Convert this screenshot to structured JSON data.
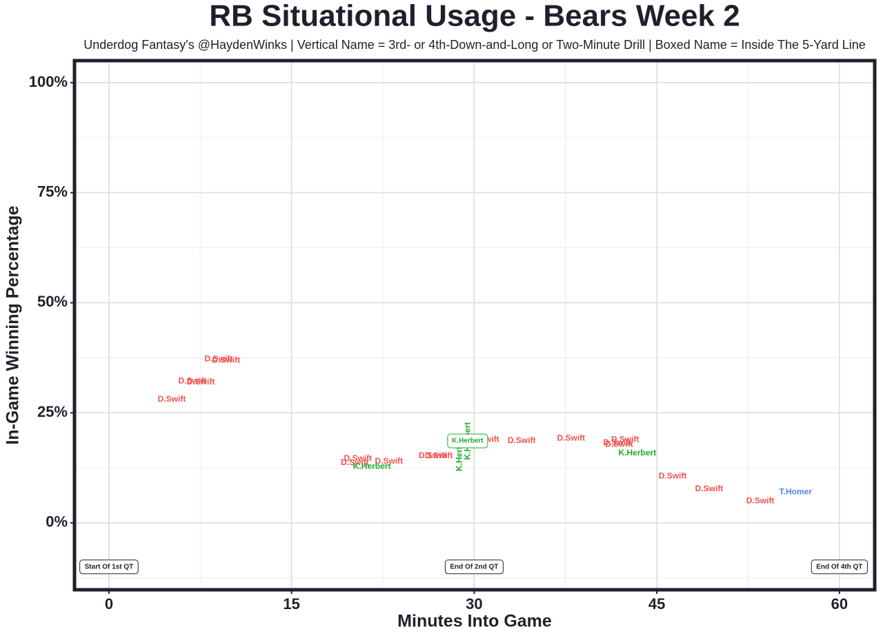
{
  "chart_data": {
    "type": "scatter",
    "title": "RB Situational Usage - Bears Week 2",
    "subtitle": "Underdog Fantasy's @HaydenWinks | Vertical Name = 3rd- or 4th-Down-and-Long or Two-Minute Drill | Boxed Name = Inside The 5-Yard Line",
    "x_label": "Minutes Into Game",
    "y_label": "In-Game Winning Percentage",
    "xlim": [
      -2.83,
      62.9
    ],
    "ylim": [
      -15.2,
      105
    ],
    "xticks": [
      0,
      15,
      30,
      45,
      60
    ],
    "xminor": [
      7.5,
      22.5,
      37.5,
      52.5
    ],
    "yticks": [
      {
        "value": 0,
        "label": "0%"
      },
      {
        "value": 25,
        "label": "25%"
      },
      {
        "value": 50,
        "label": "50%"
      },
      {
        "value": 75,
        "label": "75%"
      },
      {
        "value": 100,
        "label": "100%"
      }
    ],
    "yminor": [
      -12.5,
      12.5,
      37.5,
      62.5,
      87.5
    ],
    "grid": true,
    "series": [
      {
        "name": "D.Swift",
        "color": "#ef5350",
        "x": [
          5.16,
          6.86,
          7.54,
          9.0,
          9.63,
          20.45,
          20.2,
          23.0,
          26.6,
          27.1,
          30.9,
          33.9,
          37.96,
          41.75,
          42.4,
          41.9,
          46.3,
          49.3,
          53.5
        ],
        "values": [
          28.0,
          32.2,
          31.9,
          37.2,
          36.9,
          14.6,
          13.6,
          13.9,
          15.2,
          15.2,
          18.9,
          18.6,
          19.2,
          18.2,
          18.9,
          17.8,
          10.6,
          7.7,
          4.9
        ],
        "styles": [
          "normal",
          "normal",
          "normal",
          "normal",
          "normal",
          "normal",
          "normal",
          "normal",
          "normal",
          "normal",
          "normal",
          "normal",
          "normal",
          "normal",
          "normal",
          "normal",
          "normal",
          "normal",
          "normal"
        ]
      },
      {
        "name": "K.Herbert",
        "color": "#1aad2a",
        "x": [
          21.6,
          28.8,
          29.5,
          29.46,
          43.4
        ],
        "values": [
          12.8,
          16.0,
          18.6,
          18.6,
          15.8
        ],
        "styles": [
          "normal",
          "vertical",
          "vertical",
          "boxed",
          "normal"
        ]
      },
      {
        "name": "T.Homer",
        "color": "#4d85f0",
        "x": [
          56.4
        ],
        "values": [
          7.0
        ],
        "styles": [
          "normal"
        ]
      }
    ],
    "annotations": [
      {
        "text": "Start Of 1st QT",
        "x": 0,
        "y": -10
      },
      {
        "text": "End Of 2nd QT",
        "x": 30,
        "y": -10
      },
      {
        "text": "End Of 4th QT",
        "x": 60,
        "y": -10
      }
    ]
  }
}
